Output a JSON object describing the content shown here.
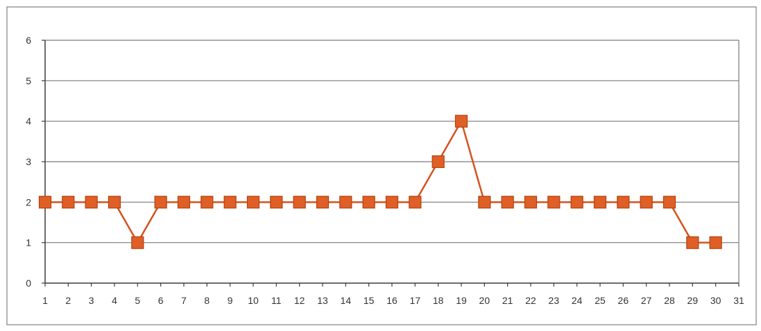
{
  "chart_data": {
    "type": "line",
    "categories": [
      "1",
      "2",
      "3",
      "4",
      "5",
      "6",
      "7",
      "8",
      "9",
      "10",
      "11",
      "12",
      "13",
      "14",
      "15",
      "16",
      "17",
      "18",
      "19",
      "20",
      "21",
      "22",
      "23",
      "24",
      "25",
      "26",
      "27",
      "28",
      "29",
      "30",
      "31"
    ],
    "series": [
      {
        "values": [
          2,
          2,
          2,
          2,
          1,
          2,
          2,
          2,
          2,
          2,
          2,
          2,
          2,
          2,
          2,
          2,
          2,
          3,
          4,
          2,
          2,
          2,
          2,
          2,
          2,
          2,
          2,
          2,
          1,
          1,
          null
        ]
      }
    ],
    "yticks": [
      "0",
      "1",
      "2",
      "3",
      "4",
      "5",
      "6"
    ],
    "ylim": [
      0,
      6
    ],
    "title": "",
    "xlabel": "",
    "ylabel": "",
    "grid": true,
    "legend": "none",
    "marker": "square"
  },
  "colors": {
    "line": "#d4521d",
    "marker_fill": "#e05f26",
    "marker_stroke": "#b3400f",
    "grid": "#7a7a7a",
    "axis": "#3c3c3c",
    "frame": "#9a9a9a"
  }
}
